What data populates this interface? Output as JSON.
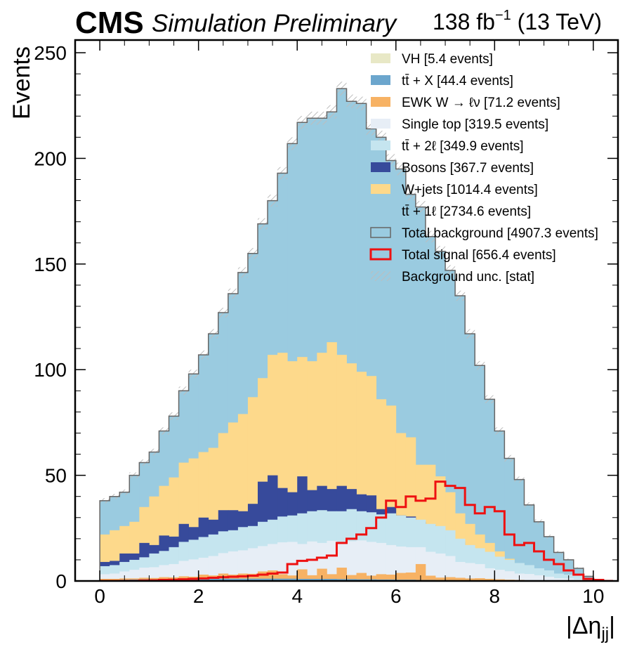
{
  "header": {
    "experiment": "CMS",
    "status": "Simulation Preliminary",
    "lumi_value": "138 fb",
    "lumi_exponent": "−1",
    "energy": " (13 TeV)"
  },
  "chart_data": {
    "type": "histogram-stack",
    "xlabel": "|Δη",
    "xlabel_sub": "jj",
    "xlabel_close": "|",
    "ylabel": "Events",
    "xlim": [
      -0.5,
      10.5
    ],
    "ylim": [
      0,
      256
    ],
    "x_ticks": [
      "0",
      "2",
      "4",
      "6",
      "8",
      "10"
    ],
    "y_ticks": [
      "0",
      "50",
      "100",
      "150",
      "200",
      "250"
    ],
    "x_tick_values": [
      0,
      2,
      4,
      6,
      8,
      10
    ],
    "y_tick_values": [
      0,
      50,
      100,
      150,
      200,
      250
    ],
    "bin_start": 0.0,
    "bin_width": 0.2,
    "legend_position": "top-right",
    "stack_order_bottom_to_top": [
      "vh",
      "ttx",
      "ewk",
      "singletop",
      "tt2l",
      "bosons",
      "wjets",
      "tt1l"
    ],
    "stack_cumulative": {
      "vh": [
        0,
        0,
        0,
        0,
        0,
        0,
        0,
        0,
        0,
        0,
        0,
        0,
        0,
        0,
        0,
        0,
        0,
        0,
        0,
        0,
        0,
        0,
        0,
        0,
        0,
        0,
        0,
        0,
        0,
        0,
        0,
        0,
        0,
        0,
        0,
        0,
        0,
        0,
        0,
        0,
        0,
        0,
        0,
        0,
        0,
        0,
        0,
        0,
        0,
        0,
        0,
        0
      ],
      "ttx": [
        0.5,
        0.5,
        0.6,
        0.7,
        0.8,
        0.8,
        0.9,
        0.9,
        1,
        1,
        1,
        1.1,
        1.1,
        1.1,
        1.1,
        1.1,
        1.1,
        1.1,
        1.1,
        1.1,
        1,
        1,
        1,
        1,
        0.9,
        0.9,
        0.8,
        0.8,
        0.7,
        0.7,
        0.6,
        0.6,
        0.5,
        0.5,
        0.4,
        0.4,
        0.3,
        0.3,
        0.2,
        0.2,
        0.2,
        0.1,
        0.1,
        0.1,
        0.1,
        0,
        0,
        0,
        0,
        0,
        0,
        0
      ],
      "ewk": [
        1,
        1,
        1.2,
        1.2,
        1.5,
        1.4,
        1.8,
        1.7,
        2.2,
        2,
        3,
        2.6,
        3.5,
        3,
        3.5,
        3.4,
        4.5,
        5,
        3.2,
        2.6,
        5.5,
        2.7,
        5.8,
        3.2,
        6.3,
        2.8,
        3.8,
        2.5,
        3.2,
        3,
        3.8,
        4,
        8,
        2.5,
        1.6,
        1.8,
        1.5,
        1.2,
        1.3,
        1,
        0.8,
        0.6,
        0.5,
        0.3,
        0.3,
        0.2,
        0.1,
        0.1,
        0,
        0,
        0,
        0
      ],
      "singletop": [
        3.2,
        3.5,
        4.5,
        5.3,
        6.3,
        6.5,
        7.5,
        8,
        9.5,
        10.2,
        11,
        11.8,
        13.2,
        14,
        14.5,
        15.5,
        16.5,
        17.5,
        18.3,
        18.5,
        17.5,
        18.7,
        18,
        19,
        17.8,
        18.8,
        19.2,
        18.5,
        18,
        17,
        16.3,
        16,
        16,
        13.8,
        13,
        11.8,
        9,
        8.5,
        8,
        6,
        5.3,
        4.6,
        3.5,
        3.3,
        2.7,
        2,
        1.3,
        1.2,
        0.8,
        0.4,
        0.1,
        0
      ],
      "tt2l": [
        7,
        7.5,
        9,
        10,
        11.2,
        13,
        14.2,
        16,
        18.5,
        19.5,
        20.8,
        22,
        23.5,
        24,
        25.5,
        26,
        28,
        29,
        30.5,
        31,
        32,
        33,
        33.5,
        33,
        33,
        34,
        33,
        32.5,
        31.5,
        32,
        31,
        30,
        29,
        27,
        26,
        24,
        20,
        17,
        15.5,
        13.8,
        11.5,
        10,
        8.5,
        7.5,
        6,
        5,
        3.5,
        3,
        2.5,
        1.5,
        0.5,
        0
      ],
      "bosons": [
        9,
        9.5,
        13,
        13,
        18,
        17,
        21.5,
        21,
        27,
        25.5,
        30,
        29,
        33.5,
        33.5,
        33,
        36.5,
        47,
        50,
        44,
        42,
        49.5,
        43,
        45,
        43.5,
        45,
        43.5,
        41,
        40.5,
        34,
        35,
        31,
        30.5,
        28,
        26.5,
        22,
        19.5,
        18.5,
        14.5,
        12.5,
        10.5,
        9,
        7.5,
        6,
        5,
        4,
        3,
        2,
        1.7,
        1,
        0.5,
        0.2,
        0
      ],
      "wjets": [
        22,
        24,
        26,
        28,
        35,
        40,
        45,
        49,
        56,
        58,
        61,
        63,
        70,
        75,
        79,
        87,
        96,
        107,
        108,
        104,
        106,
        104,
        108,
        113,
        107,
        103,
        99,
        97,
        86,
        83,
        70,
        68,
        55,
        55,
        49.5,
        42,
        32,
        27,
        22,
        18,
        14,
        10.5,
        8,
        6,
        4.5,
        3,
        2,
        1.5,
        1,
        0.5,
        0.1,
        0
      ],
      "tt1l": [
        38,
        40,
        42,
        50,
        56,
        61,
        71,
        78,
        90,
        98,
        107,
        117,
        127,
        136,
        146,
        155,
        169,
        180,
        193,
        207,
        217,
        219,
        219,
        222,
        233,
        227,
        226,
        214,
        210,
        199,
        195,
        183,
        177,
        163,
        156,
        147,
        135,
        117,
        102,
        86,
        71,
        58,
        48,
        36,
        28,
        21,
        13.5,
        10,
        6,
        2.2,
        0.5,
        0
      ]
    },
    "total_background": [
      38,
      40,
      42,
      50,
      56,
      61,
      71,
      78,
      90,
      98,
      107,
      117,
      127,
      136,
      146,
      155,
      169,
      180,
      193,
      207,
      217,
      219,
      219,
      222,
      233,
      227,
      226,
      214,
      210,
      199,
      195,
      183,
      177,
      163,
      156,
      147,
      135,
      117,
      102,
      86,
      71,
      58,
      48,
      36,
      28,
      21,
      13.5,
      10,
      6,
      2.2,
      0.5,
      0
    ],
    "total_signal": [
      0,
      0,
      0,
      0,
      0.2,
      0.3,
      0.5,
      0.6,
      0.8,
      1,
      1.2,
      1.5,
      1.8,
      2,
      2.2,
      2.5,
      3,
      3.5,
      4,
      8,
      9.5,
      10,
      11,
      12,
      18,
      20,
      22,
      25,
      30,
      38,
      35,
      40,
      38,
      39,
      47,
      45,
      44,
      36,
      32,
      35,
      33,
      22,
      17,
      18,
      14,
      10,
      8,
      5,
      3,
      1,
      0.5,
      0
    ],
    "stat_unc": [
      1.2,
      1.2,
      1.3,
      1.4,
      1.5,
      1.6,
      1.7,
      1.8,
      2,
      2,
      2.1,
      2.2,
      2.3,
      2.4,
      2.5,
      2.6,
      2.7,
      2.8,
      2.9,
      3,
      3.1,
      3.1,
      3.1,
      3.2,
      3.3,
      3.2,
      3.2,
      3.1,
      3.1,
      3,
      3,
      2.9,
      2.8,
      2.7,
      2.6,
      2.5,
      2.4,
      2.2,
      2.1,
      1.9,
      1.7,
      1.6,
      1.4,
      1.2,
      1.1,
      0.9,
      0.8,
      0.6,
      0.5,
      0.3,
      0.2,
      0
    ],
    "legend": [
      {
        "key": "vh",
        "label": "VH [5.4 events]",
        "color": "#e8e8c6",
        "style": "fill"
      },
      {
        "key": "ttx",
        "label": "tt̄ + X [44.4 events]",
        "color": "#6ca6cd",
        "style": "fill"
      },
      {
        "key": "ewk",
        "label": "EWK W → ℓν [71.2 events]",
        "color": "#f7b264",
        "style": "fill"
      },
      {
        "key": "singletop",
        "label": "Single top [319.5 events]",
        "color": "#e7eef6",
        "style": "fill"
      },
      {
        "key": "tt2l",
        "label": "tt̄ + 2ℓ [349.9 events]",
        "color": "#c5e5ef",
        "style": "fill"
      },
      {
        "key": "bosons",
        "label": "Bosons [367.7 events]",
        "color": "#374a9b",
        "style": "fill"
      },
      {
        "key": "wjets",
        "label": "W+jets [1014.4 events]",
        "color": "#fdd98b",
        "style": "fill"
      },
      {
        "key": "tt1l",
        "label": "tt̄ + 1ℓ [2734.6 events]",
        "color": "#9acbe0",
        "style": "fill"
      },
      {
        "key": "total_bkg",
        "label": "Total background [4907.3 events]",
        "color": "#666666",
        "style": "outline"
      },
      {
        "key": "total_sig",
        "label": "Total signal [656.4 events]",
        "color": "#ee1111",
        "style": "outline-thick"
      },
      {
        "key": "unc",
        "label": "Background unc. [stat]",
        "color": "#bbbbbb",
        "style": "hatch"
      }
    ]
  }
}
